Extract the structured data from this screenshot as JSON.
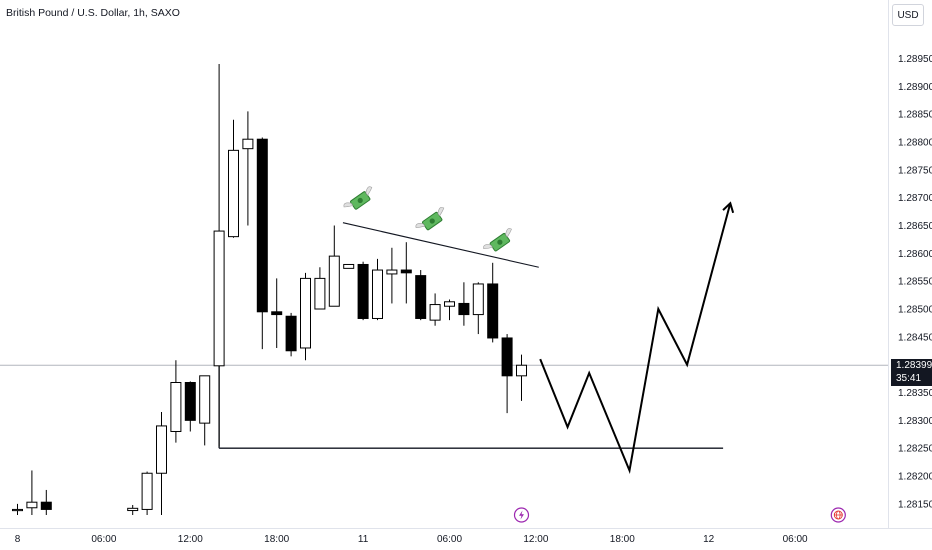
{
  "header": {
    "title": "British Pound / U.S. Dollar, 1h, SAXO",
    "currency_button": "USD"
  },
  "price_tag": {
    "price": "1.28399",
    "countdown": "35:41"
  },
  "colors": {
    "up_fill": "#ffffff",
    "down_fill": "#000000",
    "wick": "#000000",
    "axis_text": "#131722",
    "border": "#e0e3eb",
    "crosshair": "#b2b5be",
    "event_icon": "#9c27b0"
  },
  "chart_data": {
    "type": "candlestick",
    "symbol": "British Pound / U.S. Dollar",
    "interval": "1h",
    "source": "SAXO",
    "ylim": [
      1.2813,
      1.28985
    ],
    "y_ticks": [
      "1.28950",
      "1.28900",
      "1.28850",
      "1.28800",
      "1.28750",
      "1.28700",
      "1.28650",
      "1.28600",
      "1.28550",
      "1.28500",
      "1.28450",
      "1.28350",
      "1.28300",
      "1.28250",
      "1.28200",
      "1.28150"
    ],
    "x_ticks": [
      {
        "label": "8",
        "bar": 0
      },
      {
        "label": "06:00",
        "bar": 6
      },
      {
        "label": "12:00",
        "bar": 12
      },
      {
        "label": "18:00",
        "bar": 18
      },
      {
        "label": "11",
        "bar": 24
      },
      {
        "label": "06:00",
        "bar": 30
      },
      {
        "label": "12:00",
        "bar": 36
      },
      {
        "label": "18:00",
        "bar": 42
      },
      {
        "label": "12",
        "bar": 48
      },
      {
        "label": "06:00",
        "bar": 54
      }
    ],
    "candles": [
      {
        "bar": 0,
        "o": 1.28138,
        "h": 1.2815,
        "l": 1.2813,
        "c": 1.2814
      },
      {
        "bar": 1,
        "o": 1.28143,
        "h": 1.2821,
        "l": 1.2813,
        "c": 1.28153
      },
      {
        "bar": 2,
        "o": 1.28153,
        "h": 1.28175,
        "l": 1.2813,
        "c": 1.2814
      },
      {
        "bar": 8,
        "o": 1.28138,
        "h": 1.28148,
        "l": 1.2813,
        "c": 1.28142
      },
      {
        "bar": 9,
        "o": 1.2814,
        "h": 1.28208,
        "l": 1.2813,
        "c": 1.28205
      },
      {
        "bar": 10,
        "o": 1.28205,
        "h": 1.28315,
        "l": 1.2813,
        "c": 1.2829
      },
      {
        "bar": 11,
        "o": 1.2828,
        "h": 1.28408,
        "l": 1.2826,
        "c": 1.28368
      },
      {
        "bar": 12,
        "o": 1.28368,
        "h": 1.2837,
        "l": 1.2828,
        "c": 1.283
      },
      {
        "bar": 13,
        "o": 1.28295,
        "h": 1.2838,
        "l": 1.28255,
        "c": 1.2838
      },
      {
        "bar": 14,
        "o": 1.28398,
        "h": 1.2894,
        "l": 1.28253,
        "c": 1.2864
      },
      {
        "bar": 15,
        "o": 1.2863,
        "h": 1.2884,
        "l": 1.28628,
        "c": 1.28785
      },
      {
        "bar": 16,
        "o": 1.28788,
        "h": 1.28855,
        "l": 1.2865,
        "c": 1.28805
      },
      {
        "bar": 17,
        "o": 1.28805,
        "h": 1.28808,
        "l": 1.28428,
        "c": 1.28495
      },
      {
        "bar": 18,
        "o": 1.28495,
        "h": 1.28555,
        "l": 1.2843,
        "c": 1.2849
      },
      {
        "bar": 19,
        "o": 1.28487,
        "h": 1.28493,
        "l": 1.28415,
        "c": 1.28425
      },
      {
        "bar": 20,
        "o": 1.2843,
        "h": 1.28565,
        "l": 1.28408,
        "c": 1.28555
      },
      {
        "bar": 21,
        "o": 1.285,
        "h": 1.28575,
        "l": 1.285,
        "c": 1.28555
      },
      {
        "bar": 22,
        "o": 1.28505,
        "h": 1.2865,
        "l": 1.28505,
        "c": 1.28595
      },
      {
        "bar": 23,
        "o": 1.28573,
        "h": 1.2858,
        "l": 1.28573,
        "c": 1.2858
      },
      {
        "bar": 24,
        "o": 1.2858,
        "h": 1.28585,
        "l": 1.2848,
        "c": 1.28483
      },
      {
        "bar": 25,
        "o": 1.28483,
        "h": 1.2859,
        "l": 1.2848,
        "c": 1.2857
      },
      {
        "bar": 26,
        "o": 1.28563,
        "h": 1.2861,
        "l": 1.2851,
        "c": 1.2857
      },
      {
        "bar": 27,
        "o": 1.2857,
        "h": 1.2862,
        "l": 1.2851,
        "c": 1.28565
      },
      {
        "bar": 28,
        "o": 1.2856,
        "h": 1.2857,
        "l": 1.2848,
        "c": 1.28483
      },
      {
        "bar": 29,
        "o": 1.2848,
        "h": 1.28528,
        "l": 1.2847,
        "c": 1.28508
      },
      {
        "bar": 30,
        "o": 1.28505,
        "h": 1.28517,
        "l": 1.2848,
        "c": 1.28513
      },
      {
        "bar": 31,
        "o": 1.2851,
        "h": 1.28548,
        "l": 1.2847,
        "c": 1.2849
      },
      {
        "bar": 32,
        "o": 1.2849,
        "h": 1.28548,
        "l": 1.28455,
        "c": 1.28545
      },
      {
        "bar": 33,
        "o": 1.28545,
        "h": 1.28583,
        "l": 1.2844,
        "c": 1.28448
      },
      {
        "bar": 34,
        "o": 1.28448,
        "h": 1.28455,
        "l": 1.28313,
        "c": 1.2838
      },
      {
        "bar": 35,
        "o": 1.2838,
        "h": 1.28418,
        "l": 1.28335,
        "c": 1.28399
      }
    ],
    "drawings": {
      "horizontal_level": {
        "price": 1.2825,
        "from_bar": 14,
        "to_bar": 49
      },
      "vertical_line": {
        "bar": 14,
        "from_price": 1.28398,
        "to_price": 1.2825
      },
      "trendline": {
        "from": {
          "bar": 22.6,
          "price": 1.28655
        },
        "to": {
          "bar": 36.2,
          "price": 1.28575
        }
      },
      "projection_path": [
        {
          "bar": 36.3,
          "price": 1.2841
        },
        {
          "bar": 38.2,
          "price": 1.28288
        },
        {
          "bar": 39.7,
          "price": 1.28385
        },
        {
          "bar": 42.5,
          "price": 1.2821
        },
        {
          "bar": 44.5,
          "price": 1.285
        },
        {
          "bar": 46.5,
          "price": 1.284
        },
        {
          "bar": 49.5,
          "price": 1.2869
        }
      ],
      "money_icons": [
        {
          "bar": 23.8,
          "price": 1.28695
        },
        {
          "bar": 28.8,
          "price": 1.28658
        },
        {
          "bar": 33.5,
          "price": 1.2862
        }
      ]
    },
    "crosshair_price": 1.28399,
    "events": [
      {
        "bar": 35,
        "kind": "lightning-event"
      },
      {
        "bar": 57,
        "kind": "globe-event"
      }
    ]
  }
}
